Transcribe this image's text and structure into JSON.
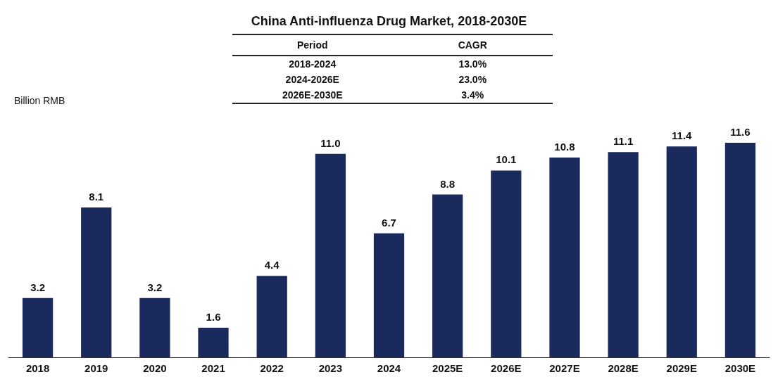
{
  "chart_data": {
    "type": "bar",
    "title": "China Anti-influenza Drug Market, 2018-2030E",
    "ylabel": "Billion RMB",
    "categories": [
      "2018",
      "2019",
      "2020",
      "2021",
      "2022",
      "2023",
      "2024",
      "2025E",
      "2026E",
      "2027E",
      "2028E",
      "2029E",
      "2030E"
    ],
    "values": [
      3.2,
      8.1,
      3.2,
      1.6,
      4.4,
      11.0,
      6.7,
      8.8,
      10.1,
      10.8,
      11.1,
      11.4,
      11.6
    ],
    "color": "#1b2a5c",
    "value_labels": [
      "3.2",
      "8.1",
      "3.2",
      "1.6",
      "4.4",
      "11.0",
      "6.7",
      "8.8",
      "10.1",
      "10.8",
      "11.1",
      "11.4",
      "11.6"
    ],
    "annotations": [
      "Period",
      "CAGR",
      "2018-2024",
      "13.0%",
      "2024-2026E",
      "23.0%",
      "2026E-2030E",
      "3.4%"
    ]
  }
}
